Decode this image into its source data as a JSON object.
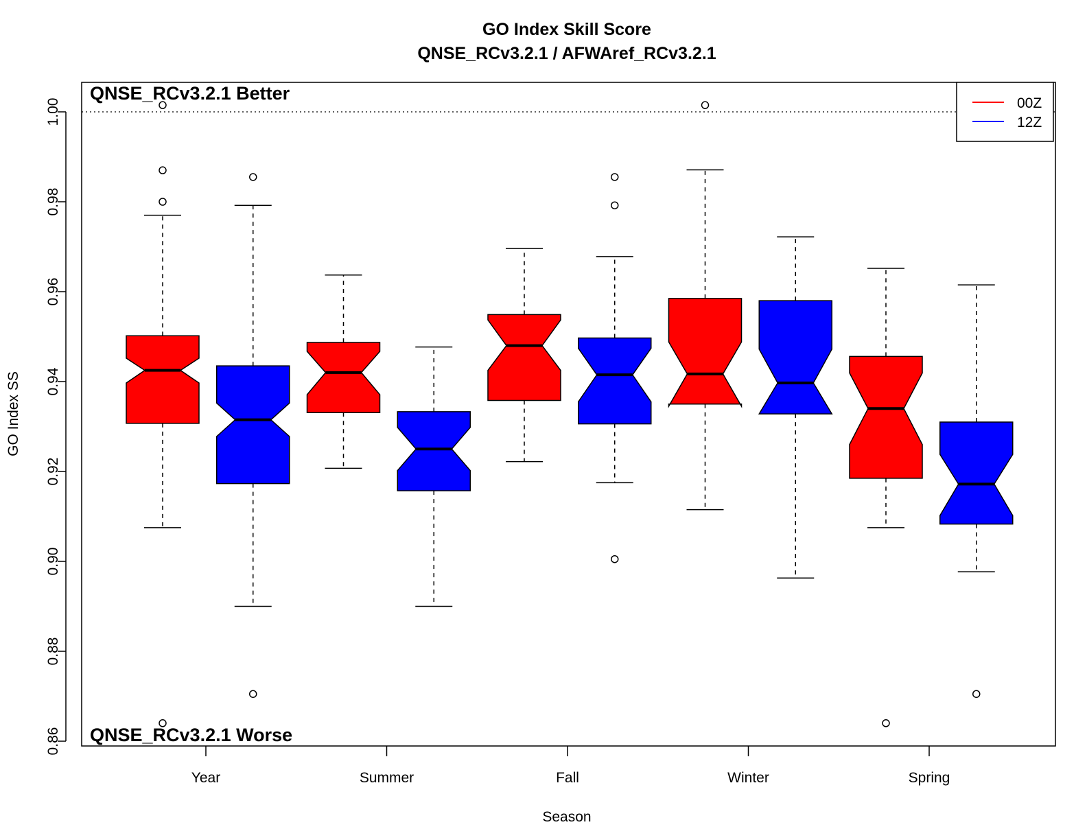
{
  "chart_data": {
    "type": "box",
    "title": "GO Index Skill Score",
    "subtitle": "QNSE_RCv3.2.1 / AFWAref_RCv3.2.1",
    "xlabel": "Season",
    "ylabel": "GO Index SS",
    "ylim": [
      0.86,
      1.006
    ],
    "yticks": [
      "0.86",
      "0.88",
      "0.90",
      "0.92",
      "0.94",
      "0.96",
      "0.98",
      "1.00"
    ],
    "reference_line": 1.0,
    "annotations": {
      "top_left": "QNSE_RCv3.2.1 Better",
      "bottom_left": "QNSE_RCv3.2.1 Worse"
    },
    "legend": {
      "position": "top-right",
      "entries": [
        {
          "label": "00Z",
          "color": "#ff0000"
        },
        {
          "label": "12Z",
          "color": "#0000ff"
        }
      ]
    },
    "categories": [
      "Year",
      "Summer",
      "Fall",
      "Winter",
      "Spring"
    ],
    "series": [
      {
        "name": "00Z",
        "color": "#ff0000",
        "boxes": [
          {
            "category": "Year",
            "whisker_low": 0.9075,
            "q1": 0.9307,
            "median": 0.9425,
            "q3": 0.9502,
            "whisker_high": 0.977,
            "notch": [
              0.9397,
              0.9452
            ],
            "outliers": [
              1.0015,
              0.987,
              0.98,
              0.864
            ]
          },
          {
            "category": "Summer",
            "whisker_low": 0.9207,
            "q1": 0.9331,
            "median": 0.942,
            "q3": 0.9487,
            "whisker_high": 0.9637,
            "notch": [
              0.9371,
              0.9467
            ],
            "outliers": []
          },
          {
            "category": "Fall",
            "whisker_low": 0.9222,
            "q1": 0.9358,
            "median": 0.948,
            "q3": 0.9549,
            "whisker_high": 0.9696,
            "notch": [
              0.9425,
              0.9537
            ],
            "outliers": []
          },
          {
            "category": "Winter",
            "whisker_low": 0.9115,
            "q1": 0.935,
            "median": 0.9417,
            "q3": 0.9585,
            "whisker_high": 0.9871,
            "notch": [
              0.9345,
              0.9488
            ],
            "outliers": [
              1.0015
            ]
          },
          {
            "category": "Spring",
            "whisker_low": 0.9075,
            "q1": 0.9185,
            "median": 0.934,
            "q3": 0.9456,
            "whisker_high": 0.9652,
            "notch": [
              0.926,
              0.9419
            ],
            "outliers": [
              0.864
            ]
          }
        ]
      },
      {
        "name": "12Z",
        "color": "#0000ff",
        "boxes": [
          {
            "category": "Year",
            "whisker_low": 0.89,
            "q1": 0.9173,
            "median": 0.9315,
            "q3": 0.9435,
            "whisker_high": 0.9792,
            "notch": [
              0.9278,
              0.9352
            ],
            "outliers": [
              0.9855,
              0.8705
            ]
          },
          {
            "category": "Summer",
            "whisker_low": 0.89,
            "q1": 0.9157,
            "median": 0.925,
            "q3": 0.9333,
            "whisker_high": 0.9477,
            "notch": [
              0.9202,
              0.9298
            ],
            "outliers": []
          },
          {
            "category": "Fall",
            "whisker_low": 0.9175,
            "q1": 0.9306,
            "median": 0.9415,
            "q3": 0.9497,
            "whisker_high": 0.9678,
            "notch": [
              0.9355,
              0.9474
            ],
            "outliers": [
              0.9855,
              0.9792,
              0.9005
            ]
          },
          {
            "category": "Winter",
            "whisker_low": 0.8963,
            "q1": 0.9328,
            "median": 0.9397,
            "q3": 0.958,
            "whisker_high": 0.9722,
            "notch": [
              0.9328,
              0.9472
            ],
            "outliers": []
          },
          {
            "category": "Spring",
            "whisker_low": 0.8977,
            "q1": 0.9083,
            "median": 0.9172,
            "q3": 0.931,
            "whisker_high": 0.9615,
            "notch": [
              0.9102,
              0.9238
            ],
            "outliers": [
              0.8705
            ]
          }
        ]
      }
    ]
  }
}
